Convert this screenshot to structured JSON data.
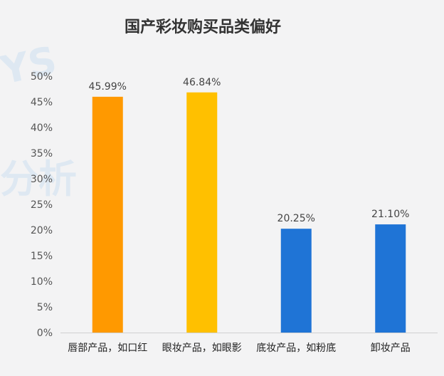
{
  "watermark": {
    "text_a": "YS",
    "text_b": "分析"
  },
  "chart_data": {
    "type": "bar",
    "title": "国产彩妆购买品类偏好",
    "categories": [
      "唇部产品，如口红",
      "眼妆产品，如眼影",
      "底妆产品，如粉底",
      "卸妆产品"
    ],
    "values": [
      45.99,
      46.84,
      20.25,
      21.1
    ],
    "data_labels": [
      "45.99%",
      "46.84%",
      "20.25%",
      "21.10%"
    ],
    "bar_colors": [
      "#ff9900",
      "#ffc000",
      "#1f74d6",
      "#1f74d6"
    ],
    "ylim": [
      0,
      50
    ],
    "yticks": [
      "0%",
      "5%",
      "10%",
      "15%",
      "20%",
      "25%",
      "30%",
      "35%",
      "40%",
      "45%",
      "50%"
    ],
    "xlabel": "",
    "ylabel": "",
    "grid": false,
    "legend": "none"
  }
}
